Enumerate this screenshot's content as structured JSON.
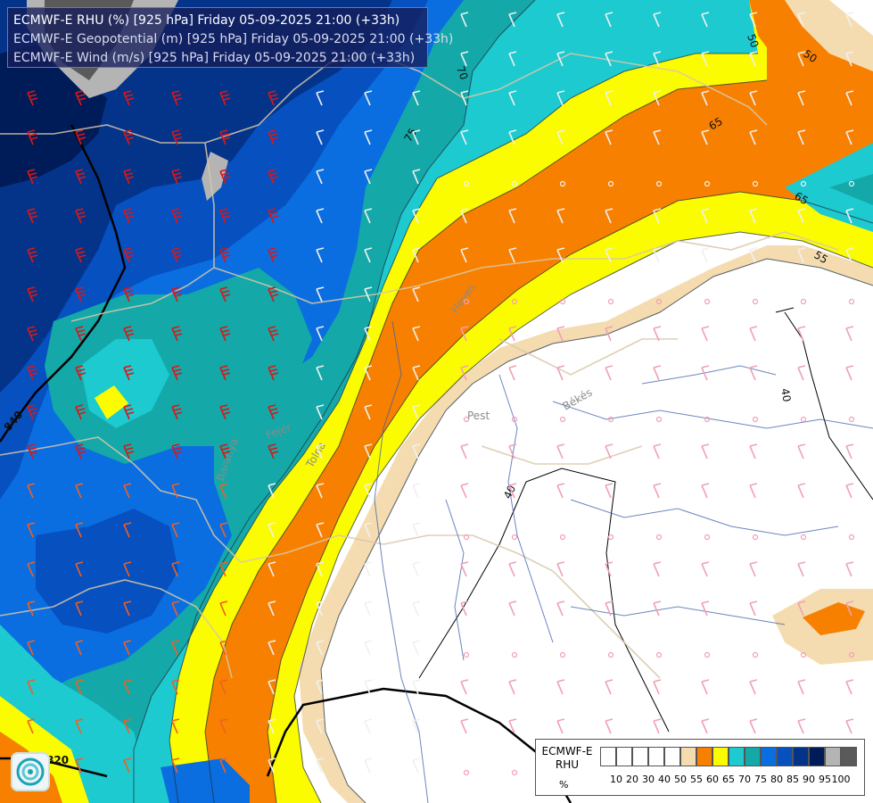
{
  "title_lines": [
    "ECMWF-E RHU (%) [925 hPa] Friday 05-09-2025 21:00 (+33h)",
    "ECMWF-E Geopotential (m) [925 hPa] Friday 05-09-2025 21:00 (+33h)",
    "ECMWF-E Wind (m/s) [925 hPa] Friday 05-09-2025 21:00 (+33h)"
  ],
  "legend": {
    "label_line1": "ECMWF-E",
    "label_line2": "RHU",
    "unit": "%",
    "colors": [
      "#ffffff",
      "#ffffff",
      "#ffffff",
      "#ffffff",
      "#ffffff",
      "#f5dcb0",
      "#f88000",
      "#fcfc00",
      "#1ccad0",
      "#14a8a8",
      "#0a6ee0",
      "#0650c0",
      "#04348a",
      "#001c58",
      "#b4b4b4",
      "#5a5a5a"
    ],
    "ticks": [
      "10",
      "20",
      "30",
      "40",
      "50",
      "55",
      "60",
      "65",
      "70",
      "75",
      "80",
      "85",
      "90",
      "95",
      "100"
    ]
  },
  "contour_labels": [
    "50",
    "50",
    "70",
    "75",
    "65",
    "65",
    "55",
    "40",
    "40",
    "840",
    "820"
  ],
  "place_labels": [
    "Pest",
    "Békés",
    "Heves",
    "Fejér",
    "Baranya",
    "Tolna"
  ],
  "icons": {
    "logo": "ecmwf-swirl-logo-icon",
    "wind_barb": "wind-barb-icon",
    "calm_wind": "calm-wind-circle-icon"
  }
}
